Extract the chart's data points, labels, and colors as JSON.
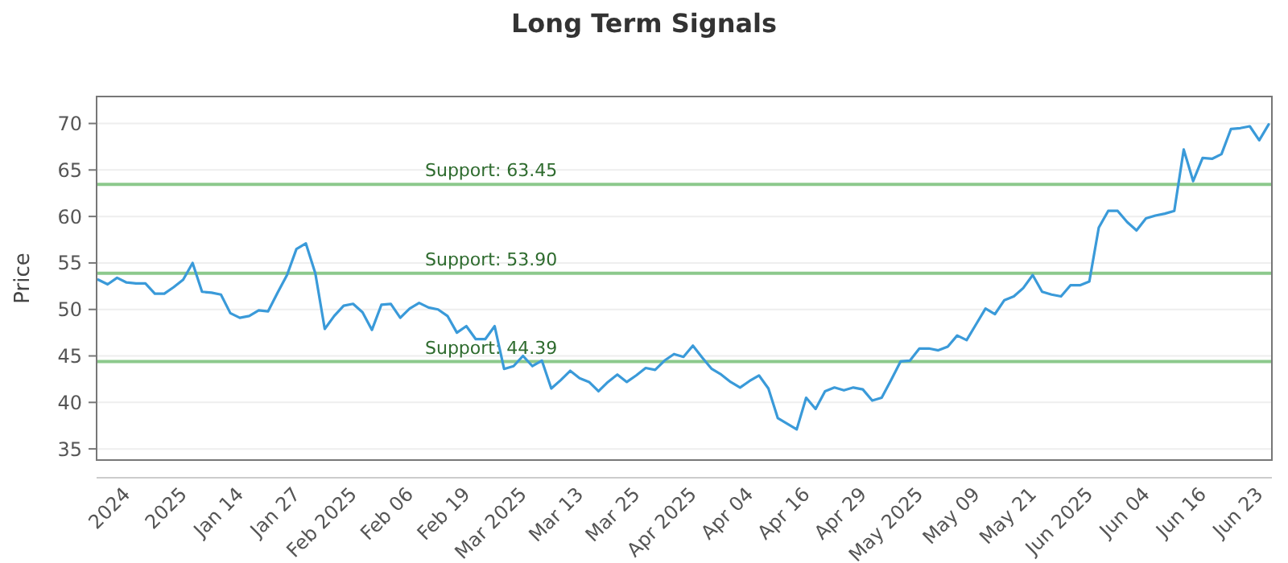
{
  "chart_data": {
    "type": "line",
    "title": "Long Term Signals",
    "ylabel": "Price",
    "categories": [
      null,
      null,
      null,
      "2024",
      null,
      null,
      null,
      null,
      null,
      "2025",
      null,
      null,
      null,
      null,
      null,
      "Jan 14",
      null,
      null,
      null,
      null,
      null,
      "Jan 27",
      null,
      null,
      null,
      null,
      null,
      "Feb 2025",
      null,
      null,
      null,
      null,
      null,
      "Feb 06",
      null,
      null,
      null,
      null,
      null,
      "Feb 19",
      null,
      null,
      null,
      null,
      null,
      "Mar 2025",
      null,
      null,
      null,
      null,
      null,
      "Mar 13",
      null,
      null,
      null,
      null,
      null,
      "Mar 25",
      null,
      null,
      null,
      null,
      null,
      "Apr 2025",
      null,
      null,
      null,
      null,
      null,
      "Apr 04",
      null,
      null,
      null,
      null,
      null,
      "Apr 16",
      null,
      null,
      null,
      null,
      null,
      "Apr 29",
      null,
      null,
      null,
      null,
      null,
      "May 2025",
      null,
      null,
      null,
      null,
      null,
      "May 09",
      null,
      null,
      null,
      null,
      null,
      "May 21",
      null,
      null,
      null,
      null,
      null,
      "Jun 2025",
      null,
      null,
      null,
      null,
      null,
      "Jun 04",
      null,
      null,
      null,
      null,
      null,
      "Jun 16",
      null,
      null,
      null,
      null,
      null,
      "Jun 23",
      null
    ],
    "series": [
      {
        "color": "#3a9ad9",
        "values": [
          53.2,
          52.7,
          53.4,
          52.9,
          52.8,
          52.8,
          51.7,
          51.7,
          52.4,
          53.2,
          55.0,
          51.9,
          51.8,
          51.6,
          49.6,
          49.1,
          49.3,
          49.9,
          49.8,
          51.8,
          53.7,
          56.5,
          57.1,
          53.9,
          47.9,
          49.3,
          50.4,
          50.6,
          49.7,
          47.8,
          50.5,
          50.6,
          49.1,
          50.1,
          50.7,
          50.2,
          50.0,
          49.3,
          47.5,
          48.2,
          46.8,
          46.8,
          48.2,
          43.6,
          43.9,
          45.0,
          43.9,
          44.5,
          41.5,
          42.4,
          43.4,
          42.6,
          42.2,
          41.2,
          42.2,
          43.0,
          42.2,
          42.9,
          43.7,
          43.5,
          44.5,
          45.2,
          44.9,
          46.1,
          44.8,
          43.6,
          43.0,
          42.2,
          41.6,
          42.3,
          42.9,
          41.5,
          38.3,
          37.7,
          37.1,
          40.5,
          39.3,
          41.2,
          41.6,
          41.3,
          41.6,
          41.4,
          40.2,
          40.5,
          42.4,
          44.4,
          44.5,
          45.8,
          45.8,
          45.6,
          46.0,
          47.2,
          46.7,
          48.4,
          50.1,
          49.5,
          51.0,
          51.4,
          52.3,
          53.7,
          51.9,
          51.6,
          51.4,
          52.6,
          52.6,
          53.0,
          58.8,
          60.6,
          60.6,
          59.4,
          58.5,
          59.8,
          60.1,
          60.3,
          60.6,
          67.2,
          63.8,
          66.3,
          66.2,
          66.7,
          69.4,
          69.5,
          69.7,
          68.2,
          69.9
        ]
      }
    ],
    "ylim": [
      33.8,
      72.9
    ],
    "yticks": [
      35,
      40,
      45,
      50,
      55,
      60,
      65,
      70
    ],
    "grid": "y",
    "marker": "none",
    "line_style": "solid",
    "ref_lines": [
      {
        "axis": "y",
        "value": 63.45,
        "label": "Support: 63.45",
        "color": "#8cc98c"
      },
      {
        "axis": "y",
        "value": 53.9,
        "label": "Support: 53.90",
        "color": "#8cc98c"
      },
      {
        "axis": "y",
        "value": 44.39,
        "label": "Support: 44.39",
        "color": "#8cc98c"
      }
    ]
  }
}
